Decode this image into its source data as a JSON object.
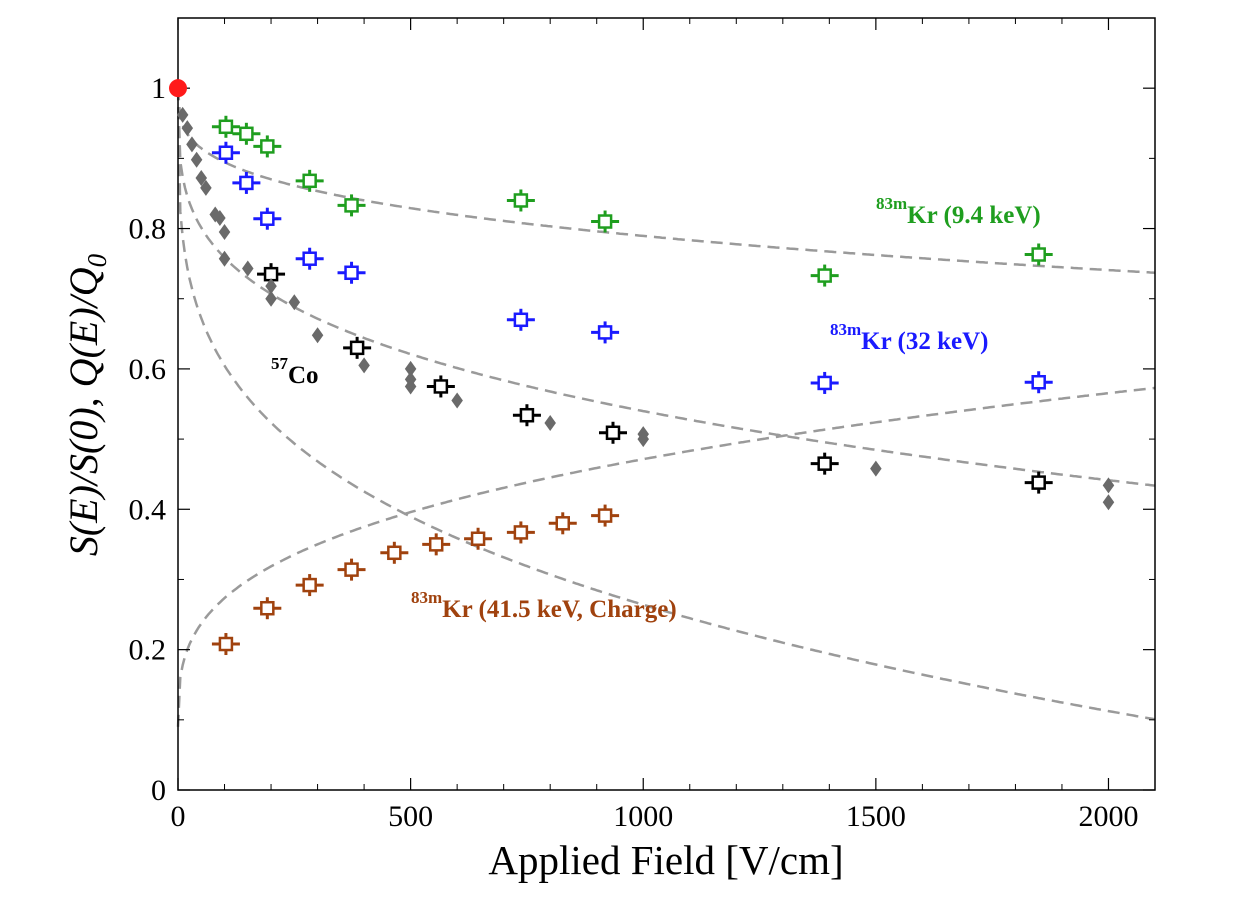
{
  "chart_data": {
    "type": "scatter",
    "xlabel": "Applied Field [V/cm]",
    "ylabel": "S(E)/S(0), Q(E)/Q",
    "ylabel_subscript": "0",
    "xlim": [
      0,
      2100
    ],
    "ylim": [
      0,
      1.1
    ],
    "x_ticks": [
      0,
      500,
      1000,
      1500,
      2000
    ],
    "y_ticks": [
      0,
      0.2,
      0.4,
      0.6,
      0.8,
      1
    ],
    "x_tick_labels": [
      "0",
      "500",
      "1000",
      "1500",
      "2000"
    ],
    "y_tick_labels": [
      "0",
      "0.2",
      "0.4",
      "0.6",
      "0.8",
      "1"
    ],
    "grid": false,
    "reference_point": {
      "x": 0,
      "y": 1.0,
      "color": "#ff1a1a"
    },
    "series": [
      {
        "name_sup": "83m",
        "name": "Kr (9.4 keV)",
        "color": "#1f9e1f",
        "marker": "open-square",
        "error_bars": true,
        "x": [
          103,
          147,
          192,
          283,
          373,
          737,
          918,
          1390,
          1850
        ],
        "y": [
          0.945,
          0.935,
          0.917,
          0.868,
          0.833,
          0.84,
          0.81,
          0.733,
          0.763
        ],
        "fit": {
          "type": "power",
          "y0": 1.0,
          "a": 0.0265,
          "b": 0.3
        }
      },
      {
        "name_sup": "83m",
        "name": "Kr (32 keV)",
        "color": "#1a1aff",
        "marker": "open-square",
        "error_bars": true,
        "x": [
          103,
          147,
          192,
          283,
          373,
          737,
          918,
          1390,
          1850
        ],
        "y": [
          0.908,
          0.865,
          0.814,
          0.757,
          0.737,
          0.67,
          0.652,
          0.58,
          0.581
        ],
        "fit": {
          "type": "power",
          "y0": 1.0,
          "a": 0.0665,
          "b": 0.28
        }
      },
      {
        "name_sup": "57",
        "name": "Co",
        "color": "#000000",
        "marker": "open-square",
        "error_bars": true,
        "x": [
          200,
          385,
          565,
          750,
          935,
          1390,
          1850
        ],
        "y": [
          0.735,
          0.63,
          0.575,
          0.534,
          0.509,
          0.465,
          0.438
        ],
        "fit": {
          "type": "power",
          "y0": 1.0,
          "a": 0.114,
          "b": 0.27
        }
      },
      {
        "name": "",
        "color": "#6a6a6a",
        "marker": "filled-diamond",
        "error_bars": false,
        "x": [
          10,
          20,
          30,
          40,
          50,
          60,
          80,
          90,
          100,
          100,
          150,
          200,
          200,
          250,
          300,
          400,
          500,
          500,
          500,
          600,
          800,
          1000,
          1000,
          1500,
          2000,
          2000
        ],
        "y": [
          0.962,
          0.943,
          0.92,
          0.898,
          0.872,
          0.858,
          0.82,
          0.815,
          0.795,
          0.757,
          0.743,
          0.718,
          0.7,
          0.695,
          0.648,
          0.605,
          0.6,
          0.585,
          0.575,
          0.555,
          0.523,
          0.507,
          0.5,
          0.458,
          0.434,
          0.41
        ]
      },
      {
        "name_sup": "83m",
        "name": "Kr (41.5 keV, Charge)",
        "color": "#a0420e",
        "marker": "open-square",
        "error_bars": true,
        "x": [
          103,
          192,
          283,
          373,
          465,
          555,
          645,
          737,
          827,
          918
        ],
        "y": [
          0.208,
          0.259,
          0.292,
          0.314,
          0.338,
          0.35,
          0.358,
          0.367,
          0.38,
          0.391
        ],
        "fit": {
          "type": "power_rise",
          "y0": 0.09,
          "a": 0.0424,
          "b": 0.318
        }
      }
    ]
  }
}
